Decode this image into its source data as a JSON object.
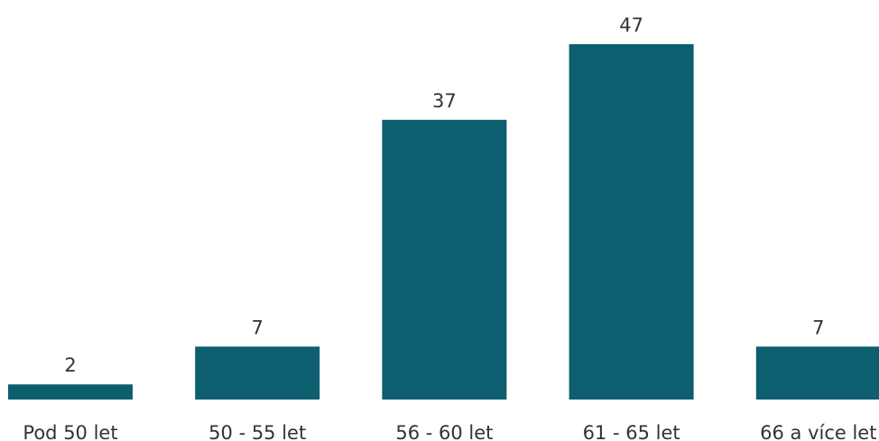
{
  "chart_data": {
    "type": "bar",
    "categories": [
      "Pod 50 let",
      "50 - 55 let",
      "56 - 60 let",
      "61 - 65 let",
      "66 a více let"
    ],
    "values": [
      2,
      7,
      37,
      47,
      7
    ],
    "data_labels": [
      "2",
      "7",
      "37",
      "47",
      "7"
    ],
    "ylim": [
      0,
      47
    ],
    "grid": false,
    "axes_visible": false,
    "show_data_labels": true,
    "bar_color": "#0d5e6e"
  }
}
